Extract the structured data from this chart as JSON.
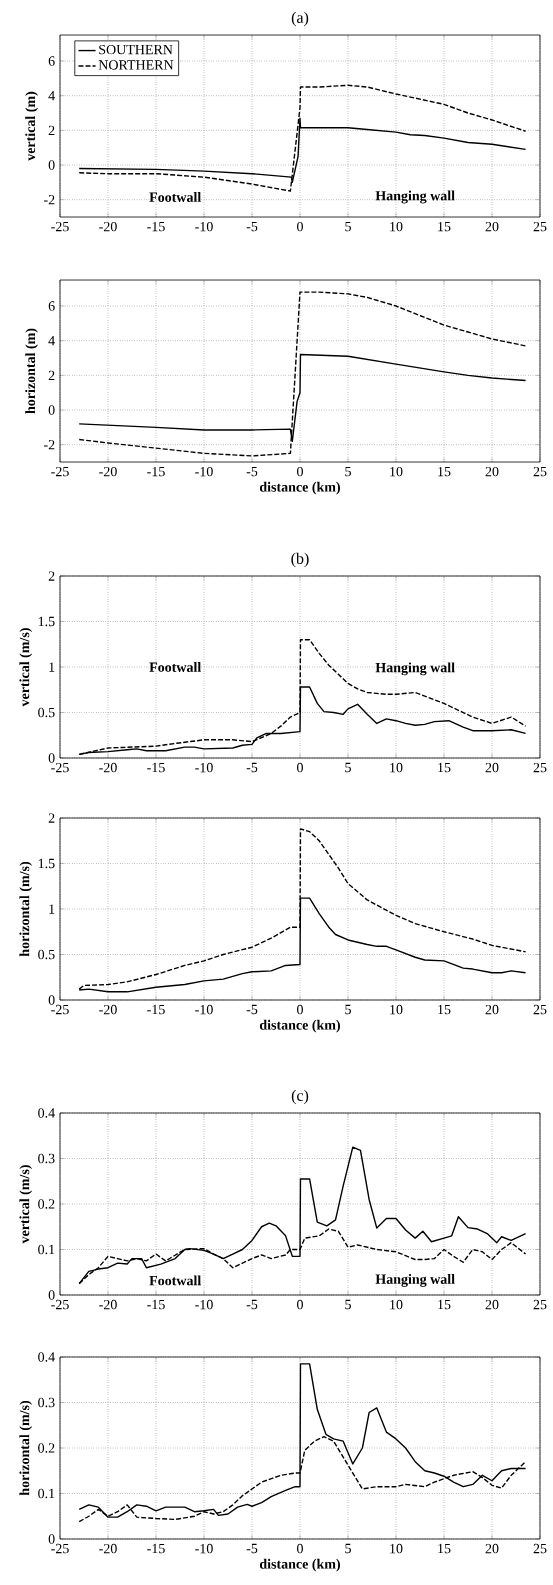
{
  "chart_data": [
    {
      "type": "line",
      "title": "(a)",
      "ylabel": "vertical (m)",
      "xlim": [
        -25,
        25
      ],
      "ylim": [
        -3,
        7.5
      ],
      "xticks": [
        -25,
        -20,
        -15,
        -10,
        -5,
        0,
        5,
        10,
        15,
        20,
        25
      ],
      "yticks": [
        -2,
        0,
        2,
        4,
        6
      ],
      "grid": true,
      "legend": "top left",
      "annotations": [
        "Footwall",
        "Hanging wall"
      ],
      "series": [
        {
          "name": "SOUTHERN",
          "color": "#000000",
          "line_style": "solid",
          "x": [
            -23,
            -15,
            -10,
            -5,
            -0.9,
            -0.8,
            -0.2,
            0,
            0.05,
            5,
            7,
            10,
            11.5,
            13,
            15,
            17.5,
            20,
            23.5
          ],
          "values": [
            -0.2,
            -0.25,
            -0.35,
            -0.5,
            -0.7,
            -1.0,
            0.5,
            2.7,
            2.15,
            2.15,
            2.05,
            1.9,
            1.75,
            1.7,
            1.55,
            1.3,
            1.2,
            0.9
          ]
        },
        {
          "name": "NORTHERN",
          "color": "#000000",
          "line_style": "dashed",
          "x": [
            -23,
            -20,
            -15,
            -10,
            -5,
            -1,
            0,
            0.05,
            2,
            5,
            7,
            10,
            12.5,
            15,
            17.5,
            20,
            23.5
          ],
          "values": [
            -0.45,
            -0.5,
            -0.5,
            -0.7,
            -1.1,
            -1.5,
            3.3,
            4.5,
            4.5,
            4.6,
            4.5,
            4.1,
            3.8,
            3.5,
            3.0,
            2.6,
            1.95
          ]
        }
      ]
    },
    {
      "type": "line",
      "ylabel": "horizontal (m)",
      "xlabel": "distance (km)",
      "xlim": [
        -25,
        25
      ],
      "ylim": [
        -3,
        7.5
      ],
      "xticks": [
        -25,
        -20,
        -15,
        -10,
        -5,
        0,
        5,
        10,
        15,
        20,
        25
      ],
      "yticks": [
        -2,
        0,
        2,
        4,
        6
      ],
      "grid": true,
      "series": [
        {
          "color": "#000000",
          "line_style": "solid",
          "x": [
            -23,
            -15,
            -10,
            -5,
            -1,
            -0.8,
            -0.3,
            0,
            0.05,
            5,
            10,
            15,
            17.5,
            20,
            23.5
          ],
          "values": [
            -0.8,
            -1.0,
            -1.15,
            -1.15,
            -1.1,
            -1.8,
            0.5,
            1.0,
            3.2,
            3.1,
            2.65,
            2.2,
            2.0,
            1.85,
            1.7
          ]
        },
        {
          "color": "#000000",
          "line_style": "dashed",
          "x": [
            -23,
            -20,
            -15,
            -10,
            -5,
            -1,
            0,
            1,
            2,
            5,
            7,
            10,
            15,
            17.5,
            20,
            23.5
          ],
          "values": [
            -1.7,
            -1.9,
            -2.2,
            -2.5,
            -2.65,
            -2.5,
            6.8,
            6.8,
            6.8,
            6.7,
            6.5,
            6.0,
            4.9,
            4.5,
            4.1,
            3.7
          ]
        }
      ]
    },
    {
      "type": "line",
      "title": "(b)",
      "ylabel": "vertical (m/s)",
      "xlim": [
        -25,
        25
      ],
      "ylim": [
        0,
        2
      ],
      "xticks": [
        -25,
        -20,
        -15,
        -10,
        -5,
        0,
        5,
        10,
        15,
        20,
        25
      ],
      "yticks": [
        0,
        0.5,
        1,
        1.5,
        2
      ],
      "grid": true,
      "annotations": [
        "Footwall",
        "Hanging wall"
      ],
      "series": [
        {
          "color": "#000000",
          "line_style": "solid",
          "x": [
            -23,
            -22,
            -20,
            -18,
            -17,
            -16,
            -14,
            -12,
            -11,
            -10,
            -7,
            -6,
            -5,
            -4.5,
            -3.5,
            -2,
            0,
            0.05,
            1,
            1.8,
            2.5,
            3.5,
            4.5,
            5,
            6,
            7,
            8,
            9,
            10,
            11,
            12,
            13,
            14,
            15.5,
            17,
            18,
            20,
            22,
            23.5
          ],
          "values": [
            0.04,
            0.06,
            0.07,
            0.09,
            0.1,
            0.08,
            0.08,
            0.12,
            0.12,
            0.1,
            0.11,
            0.14,
            0.15,
            0.22,
            0.27,
            0.27,
            0.29,
            0.78,
            0.78,
            0.6,
            0.51,
            0.5,
            0.48,
            0.54,
            0.59,
            0.48,
            0.38,
            0.43,
            0.41,
            0.38,
            0.36,
            0.37,
            0.4,
            0.41,
            0.34,
            0.3,
            0.3,
            0.31,
            0.27
          ]
        },
        {
          "color": "#000000",
          "line_style": "dashed",
          "x": [
            -23,
            -20,
            -15,
            -13,
            -10,
            -7,
            -5,
            -3,
            -2,
            -1,
            0,
            0.05,
            1,
            2,
            3,
            4,
            5,
            6,
            7,
            9,
            10,
            12,
            15,
            18,
            20,
            22,
            23.5
          ],
          "values": [
            0.04,
            0.11,
            0.13,
            0.16,
            0.2,
            0.2,
            0.18,
            0.27,
            0.35,
            0.45,
            0.5,
            1.3,
            1.3,
            1.15,
            1.02,
            0.92,
            0.82,
            0.76,
            0.72,
            0.7,
            0.7,
            0.72,
            0.6,
            0.45,
            0.38,
            0.45,
            0.35
          ]
        }
      ]
    },
    {
      "type": "line",
      "ylabel": "horizontal (m/s)",
      "xlabel": "distance (km)",
      "xlim": [
        -25,
        25
      ],
      "ylim": [
        0,
        2
      ],
      "xticks": [
        -25,
        -20,
        -15,
        -10,
        -5,
        0,
        5,
        10,
        15,
        20,
        25
      ],
      "yticks": [
        0,
        0.5,
        1,
        1.5,
        2
      ],
      "grid": true,
      "series": [
        {
          "color": "#000000",
          "line_style": "solid",
          "x": [
            -23,
            -22,
            -20,
            -18,
            -15,
            -12,
            -10,
            -8,
            -6,
            -5,
            -3,
            -1.5,
            0,
            0.05,
            1,
            2,
            3,
            3.7,
            5,
            7,
            8,
            9,
            10,
            12,
            13,
            15,
            17,
            18,
            20,
            21,
            22,
            23.5
          ],
          "values": [
            0.11,
            0.12,
            0.09,
            0.09,
            0.14,
            0.17,
            0.21,
            0.23,
            0.29,
            0.31,
            0.32,
            0.38,
            0.39,
            1.12,
            1.12,
            0.95,
            0.8,
            0.72,
            0.66,
            0.61,
            0.59,
            0.59,
            0.55,
            0.47,
            0.44,
            0.43,
            0.35,
            0.34,
            0.3,
            0.3,
            0.32,
            0.3
          ]
        },
        {
          "color": "#000000",
          "line_style": "dashed",
          "x": [
            -23,
            -22.5,
            -20,
            -18,
            -15,
            -12,
            -10,
            -8,
            -5,
            -3,
            -1,
            0,
            0.05,
            1,
            2,
            3,
            4,
            5,
            7,
            10,
            12,
            15,
            18,
            20,
            23.5
          ],
          "values": [
            0.12,
            0.16,
            0.17,
            0.2,
            0.28,
            0.38,
            0.43,
            0.5,
            0.58,
            0.68,
            0.8,
            0.8,
            1.88,
            1.85,
            1.75,
            1.6,
            1.45,
            1.28,
            1.1,
            0.93,
            0.84,
            0.75,
            0.67,
            0.6,
            0.53
          ]
        }
      ]
    },
    {
      "type": "line",
      "title": "(c)",
      "ylabel": "vertical (m/s)",
      "xlim": [
        -25,
        25
      ],
      "ylim": [
        0,
        0.4
      ],
      "xticks": [
        -25,
        -20,
        -15,
        -10,
        -5,
        0,
        5,
        10,
        15,
        20,
        25
      ],
      "yticks": [
        0,
        0.1,
        0.2,
        0.3,
        0.4
      ],
      "grid": true,
      "annotations": [
        "Footwall",
        "Hanging wall"
      ],
      "series": [
        {
          "color": "#000000",
          "line_style": "solid",
          "x": [
            -23,
            -22,
            -21,
            -20,
            -19,
            -18,
            -17.5,
            -16.5,
            -16,
            -14.5,
            -13,
            -12,
            -11.5,
            -10,
            -9,
            -8,
            -7,
            -6,
            -5,
            -4,
            -3.2,
            -2.5,
            -1.5,
            -0.8,
            0,
            0.05,
            1,
            1.8,
            2.8,
            3.7,
            4.5,
            5.5,
            6.3,
            7.2,
            8,
            9,
            10,
            11,
            12,
            12.8,
            13.7,
            15,
            15.8,
            16.5,
            17.5,
            18.5,
            19.5,
            20.5,
            21,
            22,
            23.5
          ],
          "values": [
            0.025,
            0.052,
            0.057,
            0.06,
            0.07,
            0.068,
            0.08,
            0.08,
            0.06,
            0.068,
            0.08,
            0.1,
            0.102,
            0.098,
            0.09,
            0.08,
            0.09,
            0.1,
            0.12,
            0.15,
            0.158,
            0.152,
            0.13,
            0.085,
            0.085,
            0.255,
            0.255,
            0.16,
            0.152,
            0.165,
            0.24,
            0.325,
            0.318,
            0.21,
            0.147,
            0.168,
            0.168,
            0.143,
            0.125,
            0.14,
            0.117,
            0.125,
            0.13,
            0.172,
            0.148,
            0.145,
            0.135,
            0.115,
            0.128,
            0.12,
            0.135
          ]
        },
        {
          "color": "#000000",
          "line_style": "dashed",
          "x": [
            -23,
            -22,
            -21,
            -20,
            -19,
            -18,
            -17,
            -16,
            -15,
            -14,
            -12,
            -10,
            -9,
            -8,
            -7,
            -5,
            -4,
            -3,
            -1.5,
            -1,
            0,
            0.5,
            2,
            3,
            4,
            5,
            6,
            8,
            10,
            12,
            13,
            14,
            15,
            16,
            17,
            18,
            19,
            20,
            21,
            22,
            23.5
          ],
          "values": [
            0.025,
            0.045,
            0.06,
            0.085,
            0.08,
            0.075,
            0.08,
            0.075,
            0.09,
            0.075,
            0.1,
            0.102,
            0.09,
            0.08,
            0.06,
            0.08,
            0.088,
            0.08,
            0.088,
            0.1,
            0.1,
            0.125,
            0.13,
            0.145,
            0.14,
            0.105,
            0.11,
            0.1,
            0.095,
            0.078,
            0.078,
            0.08,
            0.1,
            0.085,
            0.072,
            0.1,
            0.095,
            0.078,
            0.1,
            0.115,
            0.09
          ]
        }
      ]
    },
    {
      "type": "line",
      "ylabel": "horizontal (m/s)",
      "xlabel": "distance (km)",
      "xlim": [
        -25,
        25
      ],
      "ylim": [
        0,
        0.4
      ],
      "xticks": [
        -25,
        -20,
        -15,
        -10,
        -5,
        0,
        5,
        10,
        15,
        20,
        25
      ],
      "yticks": [
        0,
        0.1,
        0.2,
        0.3,
        0.4
      ],
      "grid": true,
      "series": [
        {
          "color": "#000000",
          "line_style": "solid",
          "x": [
            -23,
            -22,
            -21,
            -20,
            -19,
            -18,
            -17,
            -16,
            -15,
            -14,
            -12,
            -11,
            -10,
            -9,
            -8.5,
            -7.5,
            -6.5,
            -5.5,
            -5,
            -4,
            -3,
            -1.5,
            -0.5,
            0,
            0.05,
            1,
            1.8,
            2.7,
            3.5,
            4.5,
            5.5,
            6.5,
            7.2,
            8,
            9,
            10,
            11,
            12,
            13,
            14,
            15,
            16,
            17,
            18,
            19,
            20,
            21,
            22,
            23.5
          ],
          "values": [
            0.065,
            0.075,
            0.07,
            0.048,
            0.048,
            0.06,
            0.075,
            0.072,
            0.062,
            0.07,
            0.07,
            0.06,
            0.062,
            0.065,
            0.052,
            0.055,
            0.07,
            0.076,
            0.072,
            0.08,
            0.093,
            0.107,
            0.115,
            0.115,
            0.385,
            0.385,
            0.285,
            0.23,
            0.22,
            0.215,
            0.165,
            0.2,
            0.278,
            0.288,
            0.235,
            0.22,
            0.2,
            0.17,
            0.15,
            0.145,
            0.138,
            0.125,
            0.115,
            0.12,
            0.14,
            0.128,
            0.15,
            0.155,
            0.155
          ]
        },
        {
          "color": "#000000",
          "line_style": "dashed",
          "x": [
            -23,
            -22,
            -21,
            -20,
            -19,
            -18,
            -17,
            -15,
            -13,
            -11,
            -10,
            -9,
            -8,
            -7,
            -6,
            -4,
            -2,
            -0.5,
            0,
            0.5,
            1.5,
            2.5,
            3.5,
            4.5,
            5.5,
            6.5,
            8,
            10,
            11,
            13,
            14,
            16,
            18,
            19,
            20,
            21,
            22,
            23.5
          ],
          "values": [
            0.038,
            0.05,
            0.065,
            0.05,
            0.06,
            0.075,
            0.048,
            0.045,
            0.043,
            0.05,
            0.06,
            0.055,
            0.06,
            0.075,
            0.095,
            0.125,
            0.14,
            0.145,
            0.145,
            0.195,
            0.215,
            0.225,
            0.215,
            0.18,
            0.145,
            0.11,
            0.115,
            0.115,
            0.12,
            0.115,
            0.125,
            0.14,
            0.148,
            0.135,
            0.118,
            0.112,
            0.14,
            0.17
          ]
        }
      ]
    }
  ]
}
